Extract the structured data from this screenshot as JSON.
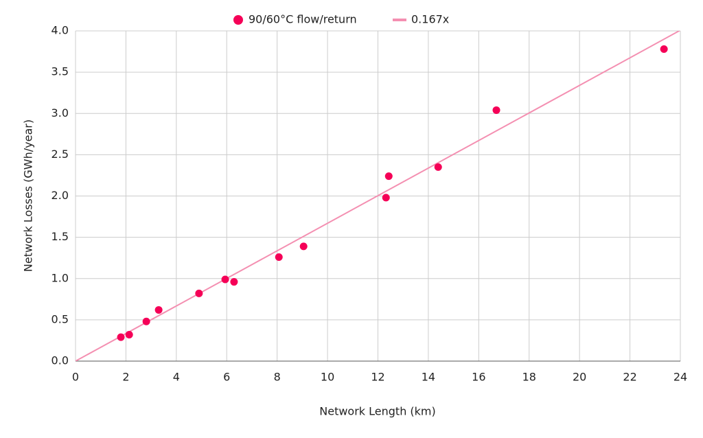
{
  "chart_data": {
    "type": "scatter",
    "x_label": "Network Length (km)",
    "y_label": "Network Losses (GWh/year)",
    "series": [
      {
        "name": "90/60°C flow/return",
        "color": "#f50057",
        "type": "scatter",
        "x": [
          1.8,
          2.13,
          2.81,
          3.3,
          4.9,
          5.94,
          6.29,
          8.07,
          9.05,
          12.32,
          12.43,
          14.39,
          16.7,
          23.35
        ],
        "values": [
          0.29,
          0.32,
          0.48,
          0.62,
          0.82,
          0.99,
          0.96,
          1.26,
          1.39,
          1.98,
          2.24,
          2.35,
          3.04,
          3.78
        ]
      },
      {
        "name": "0.167x",
        "color": "#f48fb1",
        "type": "line",
        "x": [
          0,
          24
        ],
        "values": [
          0,
          4.008
        ]
      }
    ],
    "xlim": [
      0,
      24
    ],
    "xticks": [
      0,
      2,
      4,
      6,
      8,
      10,
      12,
      14,
      16,
      18,
      20,
      22,
      24
    ],
    "ylim": [
      0,
      4
    ],
    "yticks": [
      {
        "value": 0,
        "label": "0.0"
      },
      0.5,
      {
        "value": 1,
        "label": "1.0"
      },
      1.5,
      {
        "value": 2,
        "label": "2.0"
      },
      2.5,
      {
        "value": 3,
        "label": "3.0"
      },
      3.5,
      {
        "value": 4,
        "label": "4.0"
      }
    ],
    "grid": true,
    "legend": "top"
  }
}
